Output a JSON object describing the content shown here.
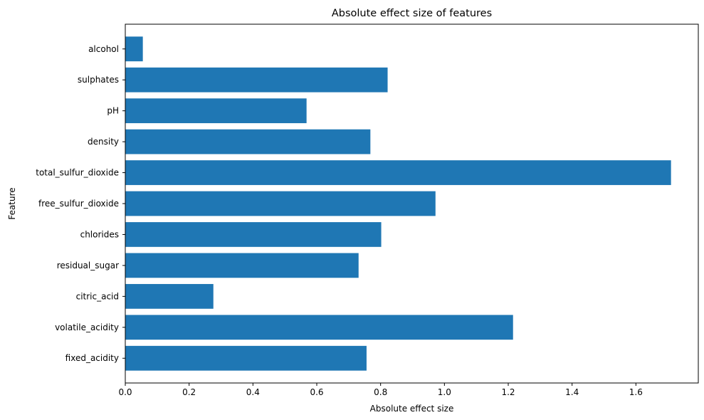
{
  "chart_data": {
    "type": "bar",
    "orientation": "horizontal",
    "title": "Absolute effect size of features",
    "xlabel": "Absolute effect size",
    "ylabel": "Feature",
    "categories": [
      "fixed_acidity",
      "volatile_acidity",
      "citric_acid",
      "residual_sugar",
      "chlorides",
      "free_sulfur_dioxide",
      "total_sulfur_dioxide",
      "density",
      "pH",
      "sulphates",
      "alcohol"
    ],
    "values": [
      0.756,
      1.215,
      0.276,
      0.731,
      0.802,
      0.972,
      1.71,
      0.768,
      0.568,
      0.822,
      0.055
    ],
    "xlim": [
      0,
      1.7955
    ],
    "xticks": [
      0.0,
      0.2,
      0.4,
      0.6,
      0.8,
      1.0,
      1.2,
      1.4,
      1.6
    ],
    "xtick_labels": [
      "0.0",
      "0.2",
      "0.4",
      "0.6",
      "0.8",
      "1.0",
      "1.2",
      "1.4",
      "1.6"
    ],
    "grid": false,
    "bar_color": "#1f77b4",
    "axis_color": "#000000"
  }
}
